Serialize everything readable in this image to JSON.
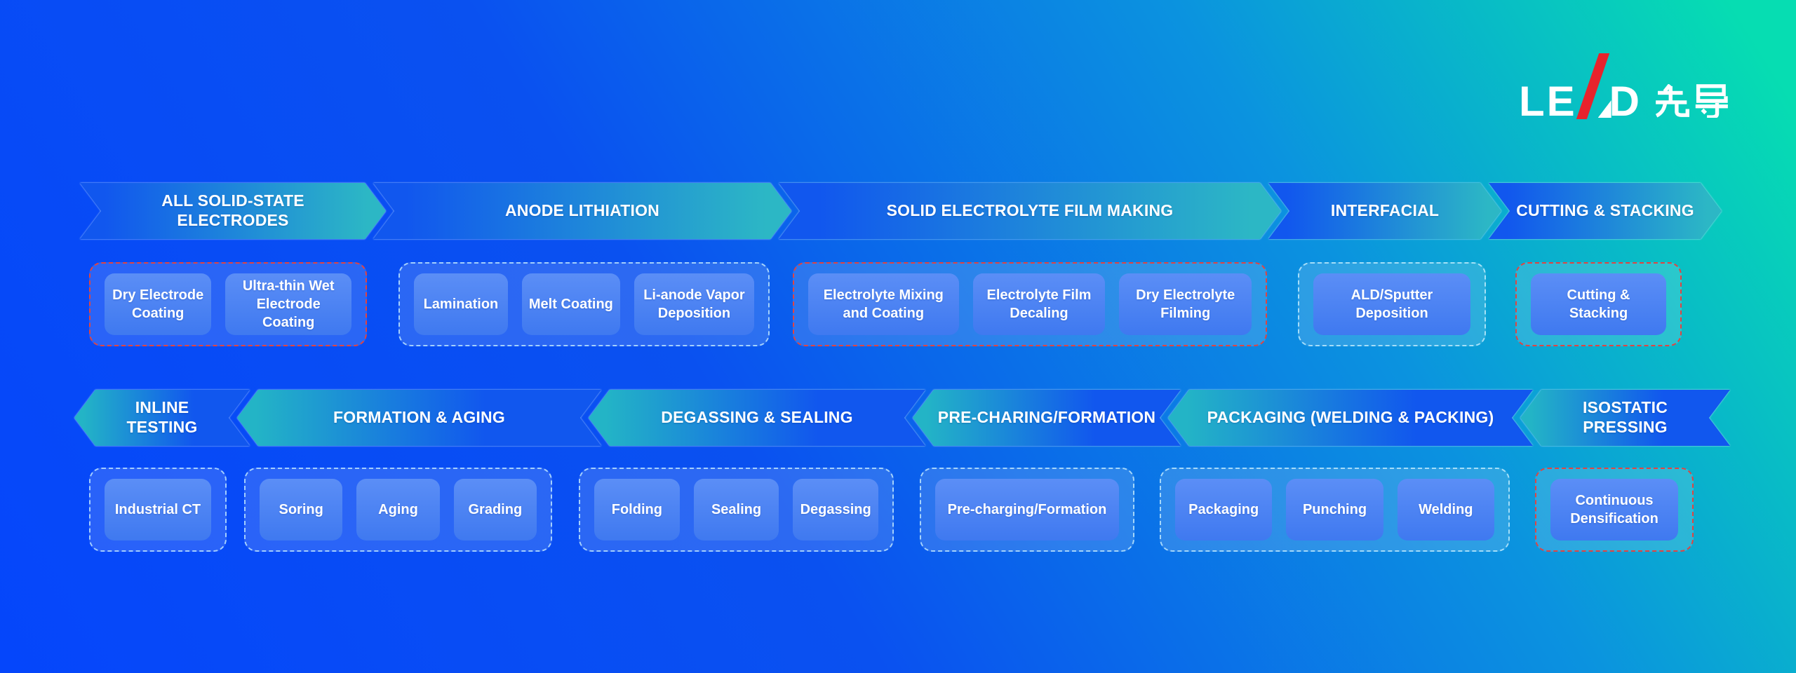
{
  "logo": {
    "latin_left": "LE",
    "latin_right": "D",
    "cjk": "先导",
    "slash_color": "#E8232C"
  },
  "colors": {
    "background_blue": "#0546FB",
    "background_teal": "#06DDB2",
    "background_cyan": "#0B93DF",
    "arrow_blue": "#1157EE",
    "arrow_teal": "#2CB7C5",
    "chip_blue_top": "#5B8EF6",
    "chip_blue_bottom": "#3F79F0",
    "group_border_red": "#E24441",
    "group_border_cyan": "#CDF2FF",
    "text_white": "#FFFFFF"
  },
  "rows": [
    {
      "name": "row-1",
      "headers": [
        {
          "label": "ALL SOLID-STATE ELECTRODES"
        },
        {
          "label": "ANODE LITHIATION"
        },
        {
          "label": "SOLID ELECTROLYTE FILM MAKING"
        },
        {
          "label": "INTERFACIAL"
        },
        {
          "label": "CUTTING & STACKING"
        }
      ],
      "groups": [
        {
          "accent": "red",
          "buttons": [
            "Dry Electrode Coating",
            "Ultra-thin Wet Electrode Coating"
          ]
        },
        {
          "accent": "cyan",
          "buttons": [
            "Lamination",
            "Melt Coating",
            "Li-anode Vapor Deposition"
          ]
        },
        {
          "accent": "red",
          "buttons": [
            "Electrolyte Mixing and Coating",
            "Electrolyte Film Decaling",
            "Dry Electrolyte Filming"
          ]
        },
        {
          "accent": "cyan",
          "buttons": [
            "ALD/Sputter Deposition"
          ]
        },
        {
          "accent": "red",
          "buttons": [
            "Cutting & Stacking"
          ]
        }
      ]
    },
    {
      "name": "row-2",
      "headers": [
        {
          "label": "INLINE TESTING"
        },
        {
          "label": "FORMATION & AGING"
        },
        {
          "label": "DEGASSING & SEALING"
        },
        {
          "label": "PRE-CHARING/FORMATION"
        },
        {
          "label": "PACKAGING (WELDING & PACKING)"
        },
        {
          "label": "ISOSTATIC PRESSING"
        }
      ],
      "groups": [
        {
          "accent": "cyan",
          "buttons": [
            "Industrial CT"
          ]
        },
        {
          "accent": "cyan",
          "buttons": [
            "Soring",
            "Aging",
            "Grading"
          ]
        },
        {
          "accent": "cyan",
          "buttons": [
            "Folding",
            "Sealing",
            "Degassing"
          ]
        },
        {
          "accent": "cyan",
          "buttons": [
            "Pre-charging/Formation"
          ]
        },
        {
          "accent": "cyan",
          "buttons": [
            "Packaging",
            "Punching",
            "Welding"
          ]
        },
        {
          "accent": "red",
          "buttons": [
            "Continuous Densification"
          ]
        }
      ]
    }
  ]
}
